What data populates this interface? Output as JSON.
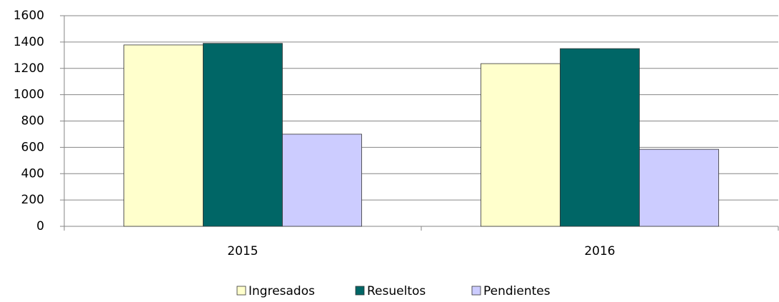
{
  "chart_data": {
    "type": "bar",
    "categories": [
      "2015",
      "2016"
    ],
    "series": [
      {
        "name": "Ingresados",
        "color": "#ffffcc",
        "values": [
          1378,
          1236
        ]
      },
      {
        "name": "Resueltos",
        "color": "#006666",
        "values": [
          1390,
          1350
        ]
      },
      {
        "name": "Pendientes",
        "color": "#ccccff",
        "values": [
          700,
          585
        ]
      }
    ],
    "ylim": [
      0,
      1600
    ],
    "yticks": [
      0,
      200,
      400,
      600,
      800,
      1000,
      1200,
      1400,
      1600
    ],
    "grid": true,
    "legend": "bottom"
  }
}
